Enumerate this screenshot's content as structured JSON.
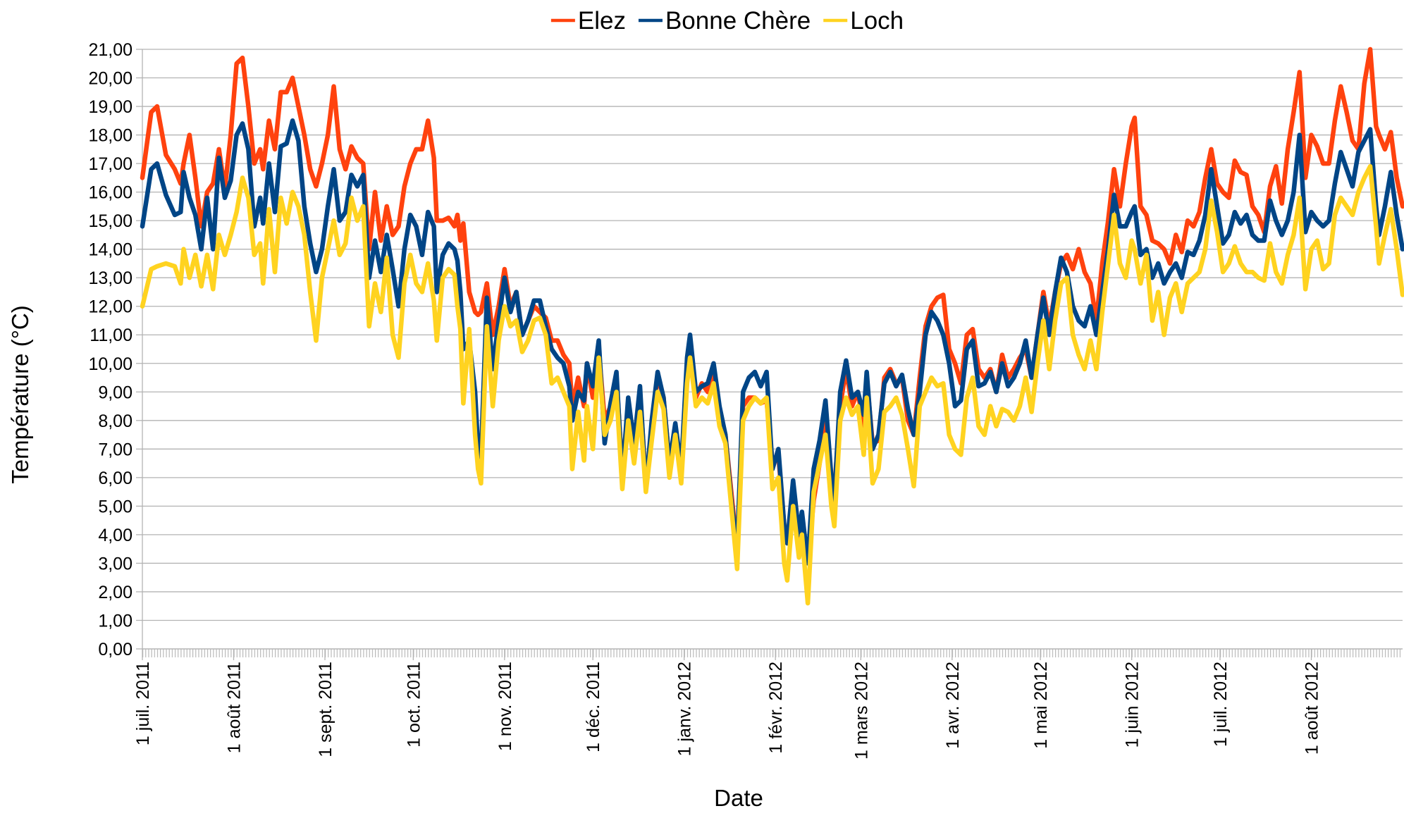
{
  "chart_data": {
    "type": "line",
    "x_label": "Date",
    "y_label": "Température (°C)",
    "legend": "top",
    "grid": true,
    "xlim": [
      "2011-07-01",
      "2012-09-01"
    ],
    "xticks": [
      {
        "value": "2011-07-01",
        "label": "1 juil. 2011"
      },
      {
        "value": "2011-08-01",
        "label": "1 août 2011"
      },
      {
        "value": "2011-09-01",
        "label": "1 sept. 2011"
      },
      {
        "value": "2011-10-01",
        "label": "1 oct. 2011"
      },
      {
        "value": "2011-11-01",
        "label": "1 nov. 2011"
      },
      {
        "value": "2011-12-01",
        "label": "1 déc. 2011"
      },
      {
        "value": "2012-01-01",
        "label": "1 janv. 2012"
      },
      {
        "value": "2012-02-01",
        "label": "1 févr. 2012"
      },
      {
        "value": "2012-03-01",
        "label": "1 mars 2012"
      },
      {
        "value": "2012-04-01",
        "label": "1 avr. 2012"
      },
      {
        "value": "2012-05-01",
        "label": "1 mai 2012"
      },
      {
        "value": "2012-06-01",
        "label": "1 juin 2012"
      },
      {
        "value": "2012-07-01",
        "label": "1 juil. 2012"
      },
      {
        "value": "2012-08-01",
        "label": "1 août 2012"
      }
    ],
    "ylim": [
      0,
      21
    ],
    "yticks": [
      {
        "value": 0,
        "label": "0,00"
      },
      {
        "value": 1,
        "label": "1,00"
      },
      {
        "value": 2,
        "label": "2,00"
      },
      {
        "value": 3,
        "label": "3,00"
      },
      {
        "value": 4,
        "label": "4,00"
      },
      {
        "value": 5,
        "label": "5,00"
      },
      {
        "value": 6,
        "label": "6,00"
      },
      {
        "value": 7,
        "label": "7,00"
      },
      {
        "value": 8,
        "label": "8,00"
      },
      {
        "value": 9,
        "label": "9,00"
      },
      {
        "value": 10,
        "label": "10,00"
      },
      {
        "value": 11,
        "label": "11,00"
      },
      {
        "value": 12,
        "label": "12,00"
      },
      {
        "value": 13,
        "label": "13,00"
      },
      {
        "value": 14,
        "label": "14,00"
      },
      {
        "value": 15,
        "label": "15,00"
      },
      {
        "value": 16,
        "label": "16,00"
      },
      {
        "value": 17,
        "label": "17,00"
      },
      {
        "value": 18,
        "label": "18,00"
      },
      {
        "value": 19,
        "label": "19,00"
      },
      {
        "value": 20,
        "label": "20,00"
      },
      {
        "value": 21,
        "label": "21,00"
      }
    ],
    "x": [
      "2011-07-01",
      "2011-07-04",
      "2011-07-06",
      "2011-07-09",
      "2011-07-12",
      "2011-07-14",
      "2011-07-15",
      "2011-07-17",
      "2011-07-19",
      "2011-07-21",
      "2011-07-23",
      "2011-07-25",
      "2011-07-27",
      "2011-07-29",
      "2011-07-31",
      "2011-08-02",
      "2011-08-04",
      "2011-08-06",
      "2011-08-08",
      "2011-08-10",
      "2011-08-11",
      "2011-08-13",
      "2011-08-15",
      "2011-08-17",
      "2011-08-19",
      "2011-08-21",
      "2011-08-23",
      "2011-08-25",
      "2011-08-27",
      "2011-08-29",
      "2011-08-31",
      "2011-09-02",
      "2011-09-04",
      "2011-09-06",
      "2011-09-08",
      "2011-09-10",
      "2011-09-12",
      "2011-09-14",
      "2011-09-16",
      "2011-09-18",
      "2011-09-20",
      "2011-09-22",
      "2011-09-24",
      "2011-09-26",
      "2011-09-28",
      "2011-09-30",
      "2011-10-02",
      "2011-10-04",
      "2011-10-06",
      "2011-10-08",
      "2011-10-09",
      "2011-10-11",
      "2011-10-13",
      "2011-10-15",
      "2011-10-16",
      "2011-10-17",
      "2011-10-18",
      "2011-10-20",
      "2011-10-22",
      "2011-10-23",
      "2011-10-24",
      "2011-10-26",
      "2011-10-28",
      "2011-10-30",
      "2011-11-01",
      "2011-11-03",
      "2011-11-05",
      "2011-11-07",
      "2011-11-09",
      "2011-11-11",
      "2011-11-13",
      "2011-11-15",
      "2011-11-17",
      "2011-11-19",
      "2011-11-21",
      "2011-11-23",
      "2011-11-24",
      "2011-11-26",
      "2011-11-28",
      "2011-11-29",
      "2011-12-01",
      "2011-12-03",
      "2011-12-05",
      "2011-12-07",
      "2011-12-09",
      "2011-12-11",
      "2011-12-13",
      "2011-12-15",
      "2011-12-17",
      "2011-12-19",
      "2011-12-21",
      "2011-12-23",
      "2011-12-25",
      "2011-12-27",
      "2011-12-29",
      "2011-12-31",
      "2012-01-02",
      "2012-01-03",
      "2012-01-05",
      "2012-01-07",
      "2012-01-09",
      "2012-01-11",
      "2012-01-13",
      "2012-01-15",
      "2012-01-17",
      "2012-01-19",
      "2012-01-21",
      "2012-01-23",
      "2012-01-25",
      "2012-01-27",
      "2012-01-29",
      "2012-01-31",
      "2012-02-02",
      "2012-02-04",
      "2012-02-05",
      "2012-02-07",
      "2012-02-09",
      "2012-02-10",
      "2012-02-12",
      "2012-02-14",
      "2012-02-16",
      "2012-02-18",
      "2012-02-20",
      "2012-02-21",
      "2012-02-23",
      "2012-02-25",
      "2012-02-27",
      "2012-02-29",
      "2012-03-02",
      "2012-03-03",
      "2012-03-05",
      "2012-03-07",
      "2012-03-09",
      "2012-03-11",
      "2012-03-13",
      "2012-03-15",
      "2012-03-17",
      "2012-03-19",
      "2012-03-21",
      "2012-03-23",
      "2012-03-25",
      "2012-03-27",
      "2012-03-29",
      "2012-03-31",
      "2012-04-02",
      "2012-04-04",
      "2012-04-06",
      "2012-04-08",
      "2012-04-10",
      "2012-04-12",
      "2012-04-14",
      "2012-04-16",
      "2012-04-18",
      "2012-04-20",
      "2012-04-22",
      "2012-04-24",
      "2012-04-26",
      "2012-04-28",
      "2012-04-30",
      "2012-05-02",
      "2012-05-04",
      "2012-05-06",
      "2012-05-08",
      "2012-05-10",
      "2012-05-12",
      "2012-05-14",
      "2012-05-16",
      "2012-05-18",
      "2012-05-20",
      "2012-05-22",
      "2012-05-24",
      "2012-05-26",
      "2012-05-28",
      "2012-05-30",
      "2012-06-01",
      "2012-06-02",
      "2012-06-04",
      "2012-06-06",
      "2012-06-08",
      "2012-06-10",
      "2012-06-12",
      "2012-06-14",
      "2012-06-16",
      "2012-06-18",
      "2012-06-20",
      "2012-06-22",
      "2012-06-24",
      "2012-06-26",
      "2012-06-28",
      "2012-06-30",
      "2012-07-02",
      "2012-07-04",
      "2012-07-06",
      "2012-07-08",
      "2012-07-10",
      "2012-07-12",
      "2012-07-14",
      "2012-07-16",
      "2012-07-18",
      "2012-07-20",
      "2012-07-22",
      "2012-07-24",
      "2012-07-26",
      "2012-07-28",
      "2012-07-30",
      "2012-08-01",
      "2012-08-03",
      "2012-08-05",
      "2012-08-07",
      "2012-08-09",
      "2012-08-11",
      "2012-08-13",
      "2012-08-15",
      "2012-08-17",
      "2012-08-19",
      "2012-08-21",
      "2012-08-23",
      "2012-08-24",
      "2012-08-26",
      "2012-08-28",
      "2012-08-30",
      "2012-09-01"
    ],
    "series": [
      {
        "name": "Elez",
        "color": "#ff420e",
        "values": [
          16.5,
          18.8,
          19.0,
          17.3,
          16.8,
          16.3,
          17.0,
          18.0,
          16.5,
          14.8,
          16.0,
          16.3,
          17.5,
          16.1,
          18.0,
          20.5,
          20.7,
          19.0,
          17.0,
          17.5,
          16.8,
          18.5,
          17.5,
          19.5,
          19.5,
          20.0,
          19.0,
          18.0,
          16.8,
          16.2,
          17.0,
          18.0,
          19.7,
          17.5,
          16.8,
          17.6,
          17.2,
          17.0,
          14.0,
          16.0,
          14.3,
          15.5,
          14.5,
          14.8,
          16.2,
          17.0,
          17.5,
          17.5,
          18.5,
          17.2,
          15.0,
          15.0,
          15.1,
          14.8,
          15.2,
          14.3,
          14.9,
          12.5,
          11.8,
          11.7,
          11.8,
          12.8,
          11.0,
          12.0,
          13.3,
          12.0,
          12.5,
          11.0,
          11.5,
          12.0,
          11.8,
          11.6,
          10.8,
          10.8,
          10.3,
          10.0,
          8.5,
          9.5,
          8.5,
          10.0,
          8.8,
          10.5,
          8.0,
          8.5,
          9.5,
          6.2,
          8.5,
          7.0,
          9.0,
          5.8,
          7.5,
          9.6,
          8.8,
          6.5,
          7.8,
          6.2,
          10.0,
          10.8,
          8.8,
          9.3,
          9.0,
          9.8,
          8.3,
          7.5,
          5.5,
          3.5,
          8.5,
          8.8,
          8.8,
          8.6,
          8.7,
          6.5,
          6.8,
          4.3,
          3.8,
          5.5,
          3.8,
          4.6,
          3.0,
          5.2,
          6.5,
          8.0,
          5.8,
          5.5,
          8.5,
          9.8,
          8.5,
          9.0,
          7.8,
          9.5,
          7.2,
          7.3,
          9.5,
          9.8,
          9.3,
          9.5,
          8.0,
          7.5,
          9.5,
          11.3,
          12.0,
          12.3,
          12.4,
          10.5,
          10.0,
          9.3,
          11.0,
          11.2,
          9.8,
          9.5,
          9.8,
          9.0,
          10.3,
          9.5,
          9.8,
          10.2,
          10.5,
          9.5,
          11.0,
          12.5,
          11.3,
          12.5,
          13.5,
          13.8,
          13.3,
          14.0,
          13.2,
          12.8,
          11.5,
          13.5,
          15.0,
          16.8,
          15.5,
          17.0,
          18.3,
          18.6,
          15.5,
          15.2,
          14.3,
          14.2,
          14.0,
          13.5,
          14.5,
          13.9,
          15.0,
          14.8,
          15.3,
          16.5,
          17.5,
          16.3,
          16.0,
          15.8,
          17.1,
          16.7,
          16.6,
          15.5,
          15.2,
          14.6,
          16.2,
          16.9,
          15.6,
          17.5,
          18.8,
          20.2,
          16.5,
          18.0,
          17.6,
          17.0,
          17.0,
          18.5,
          19.7,
          18.8,
          17.8,
          17.5,
          19.8,
          21.0,
          18.3,
          18.0,
          17.5,
          18.1,
          16.5,
          15.5
        ]
      },
      {
        "name": "Bonne Chère",
        "color": "#004586",
        "values": [
          14.8,
          16.8,
          17.0,
          15.9,
          15.2,
          15.3,
          16.7,
          15.8,
          15.2,
          14.0,
          15.8,
          14.0,
          17.2,
          15.8,
          16.4,
          18.0,
          18.4,
          17.5,
          14.8,
          15.8,
          14.9,
          17.0,
          15.3,
          17.6,
          17.7,
          18.5,
          17.8,
          15.5,
          14.2,
          13.2,
          14.0,
          15.5,
          16.8,
          15.0,
          15.3,
          16.6,
          16.2,
          16.6,
          13.0,
          14.3,
          13.2,
          14.5,
          13.3,
          12.0,
          14.0,
          15.2,
          14.8,
          13.8,
          15.3,
          14.8,
          12.5,
          13.8,
          14.2,
          14.0,
          13.6,
          12.5,
          10.5,
          10.8,
          9.0,
          7.0,
          6.7,
          12.3,
          9.8,
          11.5,
          13.0,
          11.8,
          12.5,
          11.0,
          11.5,
          12.2,
          12.2,
          11.3,
          10.5,
          10.2,
          10.0,
          9.2,
          8.0,
          9.0,
          8.7,
          10.0,
          9.2,
          10.8,
          7.2,
          8.6,
          9.7,
          6.0,
          8.8,
          7.2,
          9.2,
          5.6,
          8.0,
          9.7,
          8.8,
          6.5,
          7.9,
          6.3,
          10.2,
          11.0,
          9.0,
          9.2,
          9.3,
          10.0,
          8.5,
          7.5,
          5.2,
          3.5,
          9.0,
          9.5,
          9.7,
          9.2,
          9.7,
          6.3,
          7.0,
          4.3,
          3.7,
          5.9,
          4.0,
          4.8,
          3.0,
          6.3,
          7.3,
          8.7,
          6.0,
          5.2,
          9.0,
          10.1,
          8.8,
          9.0,
          8.2,
          9.7,
          7.0,
          7.5,
          9.3,
          9.7,
          9.2,
          9.6,
          8.4,
          7.5,
          9.0,
          11.0,
          11.8,
          11.5,
          11.0,
          10.0,
          8.5,
          8.7,
          10.5,
          10.8,
          9.2,
          9.3,
          9.7,
          9.0,
          10.0,
          9.2,
          9.5,
          10.0,
          10.8,
          9.5,
          11.0,
          12.3,
          11.0,
          12.5,
          13.7,
          13.2,
          12.0,
          11.5,
          11.3,
          12.0,
          11.0,
          12.5,
          14.0,
          15.9,
          14.8,
          14.8,
          15.3,
          15.5,
          13.8,
          14.0,
          13.0,
          13.5,
          12.8,
          13.2,
          13.5,
          13.0,
          13.9,
          13.8,
          14.3,
          15.2,
          16.8,
          15.5,
          14.2,
          14.5,
          15.3,
          14.9,
          15.2,
          14.5,
          14.3,
          14.3,
          15.7,
          15.0,
          14.5,
          15.0,
          16.0,
          18.0,
          14.6,
          15.3,
          15.0,
          14.8,
          15.0,
          16.3,
          17.4,
          16.8,
          16.2,
          17.4,
          17.8,
          18.2,
          15.5,
          14.5,
          15.5,
          16.7,
          15.2,
          14.0
        ]
      },
      {
        "name": "Loch",
        "color": "#ffd320",
        "values": [
          12.0,
          13.3,
          13.4,
          13.5,
          13.4,
          12.8,
          14.0,
          13.0,
          13.8,
          12.7,
          13.8,
          12.6,
          14.5,
          13.8,
          14.5,
          15.3,
          16.5,
          15.8,
          13.8,
          14.2,
          12.8,
          15.4,
          13.2,
          15.8,
          14.9,
          16.0,
          15.5,
          14.5,
          12.5,
          10.8,
          13.0,
          14.0,
          15.0,
          13.8,
          14.2,
          15.8,
          15.0,
          15.5,
          11.3,
          12.8,
          11.8,
          13.7,
          11.0,
          10.2,
          12.8,
          13.8,
          12.8,
          12.5,
          13.5,
          12.2,
          10.8,
          13.0,
          13.3,
          13.1,
          12.0,
          11.2,
          8.6,
          11.2,
          7.5,
          6.3,
          5.8,
          11.3,
          8.5,
          10.8,
          12.0,
          11.3,
          11.5,
          10.4,
          10.8,
          11.5,
          11.6,
          11.0,
          9.3,
          9.5,
          9.0,
          8.5,
          6.3,
          8.3,
          6.6,
          8.5,
          7.0,
          10.2,
          7.5,
          8.0,
          9.0,
          5.6,
          8.0,
          6.5,
          8.3,
          5.5,
          7.3,
          9.0,
          8.4,
          6.0,
          7.5,
          5.8,
          9.3,
          10.2,
          8.5,
          8.8,
          8.6,
          9.3,
          7.8,
          7.2,
          5.0,
          2.8,
          8.0,
          8.5,
          8.8,
          8.6,
          8.8,
          5.6,
          6.0,
          3.0,
          2.4,
          5.0,
          3.2,
          4.0,
          1.6,
          5.5,
          6.5,
          7.5,
          5.0,
          4.3,
          8.0,
          8.8,
          8.2,
          8.5,
          6.8,
          8.8,
          5.8,
          6.3,
          8.3,
          8.5,
          8.8,
          8.2,
          7.0,
          5.7,
          8.5,
          9.0,
          9.5,
          9.2,
          9.3,
          7.5,
          7.0,
          6.8,
          8.8,
          9.5,
          7.8,
          7.5,
          8.5,
          7.8,
          8.4,
          8.3,
          8.0,
          8.5,
          9.5,
          8.3,
          10.0,
          11.5,
          9.8,
          11.5,
          12.8,
          13.0,
          11.0,
          10.3,
          9.8,
          10.8,
          9.8,
          11.8,
          13.5,
          15.2,
          13.5,
          13.0,
          14.3,
          14.0,
          12.8,
          13.8,
          11.5,
          12.5,
          11.0,
          12.3,
          12.8,
          11.8,
          12.8,
          13.0,
          13.2,
          14.0,
          15.7,
          14.6,
          13.2,
          13.5,
          14.1,
          13.5,
          13.2,
          13.2,
          13.0,
          12.9,
          14.2,
          13.2,
          12.8,
          13.8,
          14.5,
          15.8,
          12.6,
          14.0,
          14.3,
          13.3,
          13.5,
          15.2,
          15.8,
          15.5,
          15.2,
          16.0,
          16.5,
          16.9,
          14.8,
          13.5,
          14.5,
          15.4,
          14.0,
          12.4
        ]
      }
    ]
  }
}
